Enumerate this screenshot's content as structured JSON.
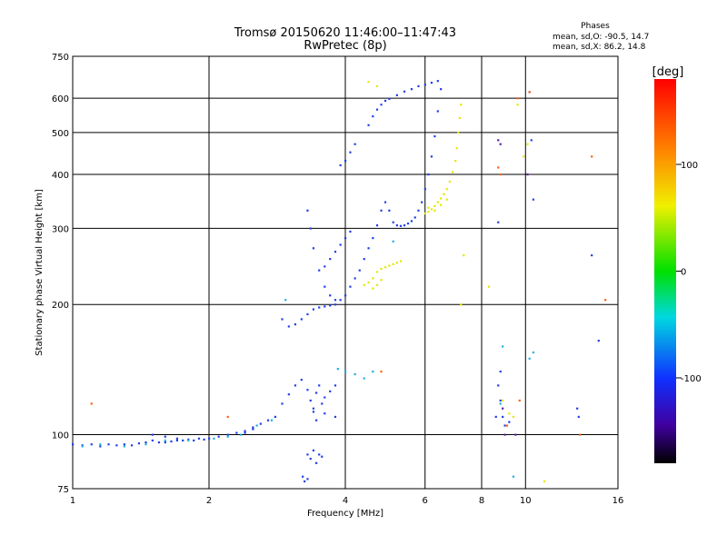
{
  "chart_data": {
    "type": "scatter",
    "title": "Tromsø 20150620 11:46:00–11:47:43",
    "subtitle": "RwPretec (8p)",
    "xlabel": "Frequency [MHz]",
    "ylabel": "Stationary phase Virtual Height [km]",
    "x_scale": "log",
    "y_scale": "log",
    "xlim": [
      1,
      16
    ],
    "ylim": [
      75,
      750
    ],
    "x_ticks": [
      1,
      2,
      4,
      6,
      8,
      10,
      16
    ],
    "x_tick_labels": [
      "1",
      "2",
      "4",
      "6",
      "8",
      "10",
      "16"
    ],
    "y_ticks": [
      75,
      100,
      200,
      300,
      400,
      500,
      600,
      750
    ],
    "y_tick_labels": [
      "75",
      "100",
      "200",
      "300",
      "400",
      "500",
      "600",
      "750"
    ],
    "grid": true,
    "phase_stats": {
      "heading": "Phases",
      "line_o": "mean, sd,O: -90.5, 14.7",
      "line_x": "mean, sd,X:  86.2, 14.8"
    },
    "colorbar": {
      "label": "[deg]",
      "ticks": [
        100,
        0,
        -100
      ],
      "tick_labels": [
        "100",
        "0",
        "-100"
      ],
      "range": [
        -180,
        180
      ]
    },
    "series": [
      {
        "mode": "O",
        "phase_deg": -90,
        "color": "#2040e8",
        "points": [
          [
            1.0,
            95
          ],
          [
            1.05,
            94.5
          ],
          [
            1.1,
            95
          ],
          [
            1.15,
            94
          ],
          [
            1.2,
            95
          ],
          [
            1.25,
            94.5
          ],
          [
            1.3,
            95
          ],
          [
            1.35,
            94.5
          ],
          [
            1.4,
            95.5
          ],
          [
            1.45,
            96
          ],
          [
            1.5,
            97
          ],
          [
            1.55,
            96
          ],
          [
            1.6,
            96
          ],
          [
            1.65,
            96.5
          ],
          [
            1.7,
            97
          ],
          [
            1.75,
            97
          ],
          [
            1.8,
            97.5
          ],
          [
            1.85,
            97
          ],
          [
            1.9,
            98
          ],
          [
            1.95,
            97.5
          ],
          [
            2.0,
            98
          ],
          [
            2.1,
            99
          ],
          [
            2.2,
            100
          ],
          [
            2.3,
            101
          ],
          [
            2.4,
            102
          ],
          [
            2.5,
            104
          ],
          [
            2.6,
            106
          ],
          [
            2.7,
            108
          ],
          [
            2.8,
            110
          ],
          [
            2.9,
            118
          ],
          [
            3.0,
            124
          ],
          [
            3.1,
            130
          ],
          [
            3.2,
            134
          ],
          [
            3.3,
            127
          ],
          [
            3.35,
            120
          ],
          [
            3.4,
            113
          ],
          [
            3.45,
            125
          ],
          [
            3.5,
            130
          ],
          [
            3.55,
            118
          ],
          [
            3.6,
            122
          ],
          [
            3.7,
            126
          ],
          [
            3.8,
            130
          ],
          [
            3.22,
            80
          ],
          [
            3.25,
            78
          ],
          [
            3.3,
            79
          ],
          [
            2.9,
            185
          ],
          [
            3.0,
            178
          ],
          [
            3.1,
            180
          ],
          [
            3.2,
            185
          ],
          [
            3.3,
            190
          ],
          [
            3.4,
            195
          ],
          [
            3.5,
            197
          ],
          [
            3.6,
            198
          ],
          [
            3.7,
            199
          ],
          [
            3.8,
            200
          ],
          [
            3.9,
            205
          ],
          [
            4.0,
            210
          ],
          [
            4.1,
            220
          ],
          [
            4.2,
            230
          ],
          [
            4.3,
            240
          ],
          [
            4.4,
            255
          ],
          [
            4.5,
            270
          ],
          [
            4.6,
            285
          ],
          [
            4.7,
            305
          ],
          [
            4.8,
            330
          ],
          [
            4.9,
            345
          ],
          [
            5.0,
            330
          ],
          [
            5.1,
            310
          ],
          [
            5.2,
            305
          ],
          [
            5.3,
            304
          ],
          [
            5.4,
            305
          ],
          [
            5.5,
            308
          ],
          [
            5.6,
            312
          ],
          [
            5.7,
            318
          ],
          [
            5.8,
            330
          ],
          [
            5.9,
            345
          ],
          [
            6.0,
            370
          ],
          [
            6.1,
            400
          ],
          [
            6.2,
            440
          ],
          [
            6.3,
            490
          ],
          [
            6.4,
            560
          ],
          [
            6.5,
            630
          ],
          [
            3.3,
            330
          ],
          [
            3.35,
            300
          ],
          [
            3.4,
            270
          ],
          [
            3.5,
            240
          ],
          [
            3.6,
            220
          ],
          [
            3.7,
            210
          ],
          [
            3.8,
            205
          ],
          [
            3.6,
            245
          ],
          [
            3.7,
            255
          ],
          [
            3.8,
            265
          ],
          [
            3.9,
            275
          ],
          [
            4.0,
            285
          ],
          [
            4.1,
            295
          ],
          [
            3.3,
            90
          ],
          [
            3.35,
            88
          ],
          [
            3.4,
            92
          ],
          [
            3.45,
            86
          ],
          [
            3.5,
            90
          ],
          [
            3.55,
            89
          ],
          [
            3.4,
            115
          ],
          [
            3.6,
            112
          ],
          [
            3.8,
            110
          ],
          [
            3.45,
            108
          ],
          [
            4.0,
            430
          ],
          [
            4.1,
            450
          ],
          [
            4.2,
            470
          ],
          [
            3.9,
            420
          ],
          [
            4.5,
            520
          ],
          [
            4.6,
            545
          ],
          [
            4.7,
            565
          ],
          [
            4.8,
            580
          ],
          [
            4.9,
            592
          ],
          [
            5.0,
            598
          ],
          [
            5.2,
            610
          ],
          [
            5.4,
            622
          ],
          [
            5.6,
            630
          ],
          [
            5.8,
            640
          ],
          [
            6.0,
            645
          ],
          [
            6.2,
            652
          ],
          [
            6.4,
            658
          ],
          [
            1.5,
            100
          ],
          [
            1.6,
            99
          ],
          [
            1.7,
            98
          ],
          [
            2.4,
            101
          ],
          [
            2.5,
            103
          ],
          [
            10.2,
            620
          ],
          [
            10.3,
            480
          ],
          [
            10.4,
            350
          ],
          [
            8.7,
            310
          ],
          [
            8.8,
            140
          ],
          [
            8.7,
            130
          ],
          [
            8.8,
            120
          ],
          [
            8.9,
            110
          ],
          [
            9.0,
            105
          ],
          [
            9.2,
            107
          ],
          [
            8.6,
            110
          ],
          [
            13.0,
            115
          ],
          [
            13.1,
            110
          ],
          [
            14.0,
            260
          ],
          [
            14.5,
            165
          ]
        ]
      },
      {
        "mode": "X",
        "phase_deg": 86,
        "color": "#e4e800",
        "points": [
          [
            4.4,
            222
          ],
          [
            4.5,
            225
          ],
          [
            4.6,
            230
          ],
          [
            4.7,
            238
          ],
          [
            4.8,
            242
          ],
          [
            4.9,
            244
          ],
          [
            5.0,
            246
          ],
          [
            5.1,
            248
          ],
          [
            5.2,
            250
          ],
          [
            5.3,
            252
          ],
          [
            4.6,
            218
          ],
          [
            4.7,
            222
          ],
          [
            4.8,
            228
          ],
          [
            6.0,
            325
          ],
          [
            6.1,
            328
          ],
          [
            6.2,
            332
          ],
          [
            6.3,
            338
          ],
          [
            6.4,
            345
          ],
          [
            6.5,
            352
          ],
          [
            6.6,
            360
          ],
          [
            6.7,
            370
          ],
          [
            6.8,
            385
          ],
          [
            6.9,
            405
          ],
          [
            7.0,
            430
          ],
          [
            7.05,
            460
          ],
          [
            7.1,
            500
          ],
          [
            7.15,
            540
          ],
          [
            7.2,
            580
          ],
          [
            6.1,
            335
          ],
          [
            6.3,
            330
          ],
          [
            6.5,
            340
          ],
          [
            6.7,
            350
          ],
          [
            4.5,
            655
          ],
          [
            4.7,
            640
          ],
          [
            9.6,
            580
          ],
          [
            9.9,
            440
          ],
          [
            10.1,
            470
          ],
          [
            8.9,
            120
          ],
          [
            9.2,
            112
          ],
          [
            9.4,
            110
          ],
          [
            7.3,
            260
          ],
          [
            8.3,
            220
          ],
          [
            7.2,
            200
          ],
          [
            11.0,
            78
          ]
        ]
      },
      {
        "mode": "mixed",
        "phase_deg": -60,
        "color": "#20b0e0",
        "points": [
          [
            1.05,
            94
          ],
          [
            1.15,
            95
          ],
          [
            1.3,
            94
          ],
          [
            1.45,
            95
          ],
          [
            1.6,
            97
          ],
          [
            1.8,
            97
          ],
          [
            2.05,
            98
          ],
          [
            2.2,
            99
          ],
          [
            2.35,
            100
          ],
          [
            2.55,
            105
          ],
          [
            2.75,
            108
          ],
          [
            4.0,
            140
          ],
          [
            4.2,
            138
          ],
          [
            4.4,
            135
          ],
          [
            4.6,
            140
          ],
          [
            3.85,
            142
          ],
          [
            2.95,
            205
          ],
          [
            5.1,
            280
          ],
          [
            10.4,
            155
          ],
          [
            10.2,
            150
          ],
          [
            8.9,
            160
          ],
          [
            8.8,
            118
          ],
          [
            9.4,
            80
          ]
        ]
      },
      {
        "mode": "mixed",
        "phase_deg": 150,
        "color": "#ff6010",
        "points": [
          [
            1.1,
            118
          ],
          [
            2.2,
            110
          ],
          [
            4.8,
            140
          ],
          [
            9.7,
            120
          ],
          [
            9.6,
            600
          ],
          [
            10.2,
            620
          ],
          [
            14.0,
            440
          ],
          [
            15.0,
            205
          ],
          [
            13.2,
            100
          ],
          [
            8.7,
            415
          ],
          [
            8.8,
            400
          ],
          [
            9.1,
            105
          ]
        ]
      },
      {
        "mode": "mixed",
        "phase_deg": -150,
        "color": "#6020a0",
        "points": [
          [
            8.7,
            480
          ],
          [
            8.8,
            470
          ],
          [
            8.9,
            115
          ],
          [
            9.0,
            100
          ],
          [
            9.5,
            100
          ],
          [
            10.1,
            400
          ]
        ]
      }
    ]
  }
}
